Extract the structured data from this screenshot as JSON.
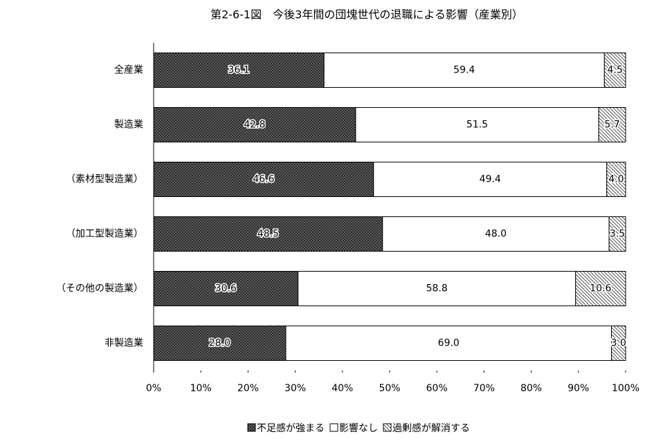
{
  "chart_data": {
    "type": "stacked-bar-horizontal",
    "title": "第2-6-1図　今後3年間の団塊世代の退職による影響（産業別）",
    "categories": [
      "全産業",
      "製造業",
      "（素材型製造業）",
      "（加工型製造業）",
      "（その他の製造業）",
      "非製造業"
    ],
    "series": [
      {
        "name": "不足感が強まる",
        "values": [
          36.1,
          42.8,
          46.6,
          48.5,
          30.6,
          28.0
        ],
        "value_labels": [
          "36.1",
          "42.8",
          "46.6",
          "48.5",
          "30.6",
          "28.0"
        ]
      },
      {
        "name": "影響なし",
        "values": [
          59.4,
          51.5,
          49.4,
          48.0,
          58.8,
          69.0
        ],
        "value_labels": [
          "59.4",
          "51.5",
          "49.4",
          "48.0",
          "58.8",
          "69.0"
        ]
      },
      {
        "name": "過剰感が解消する",
        "values": [
          4.5,
          5.7,
          4.0,
          3.5,
          10.6,
          3.0
        ],
        "value_labels": [
          "4.5",
          "5.7",
          "4.0",
          "3.5",
          "10.6",
          "3.0"
        ]
      }
    ],
    "xlim": [
      0,
      100
    ],
    "xticks": [
      {
        "value": 0,
        "label": "0%"
      },
      {
        "value": 10,
        "label": "10%"
      },
      {
        "value": 20,
        "label": "20%"
      },
      {
        "value": 30,
        "label": "30%"
      },
      {
        "value": 40,
        "label": "40%"
      },
      {
        "value": 50,
        "label": "50%"
      },
      {
        "value": 60,
        "label": "60%"
      },
      {
        "value": 70,
        "label": "70%"
      },
      {
        "value": 80,
        "label": "80%"
      },
      {
        "value": 90,
        "label": "90%"
      },
      {
        "value": 100,
        "label": "100%"
      }
    ]
  }
}
